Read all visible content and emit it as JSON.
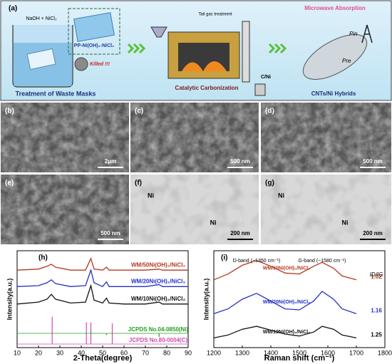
{
  "schematic": {
    "label": "(a)",
    "naoh": "NaOH + NiCl₂",
    "mask": "PP-Ni(OH)₂-NiCl₂",
    "killed": "Killed !!!",
    "treatment": "Treatment of Waste Masks",
    "tail_gas": "Tail gas treatment",
    "carbonization": "Catalytic Carbonization",
    "product": "C/Ni",
    "microwave": "Microwave Absorption",
    "hybrids": "CNTs/Ni Hybrids",
    "p_in": "Pin",
    "p_re": "Pre"
  },
  "micrographs": [
    {
      "label": "(b)",
      "scale_bar": "2μm",
      "tem": false
    },
    {
      "label": "(c)",
      "scale_bar": "500 nm",
      "tem": false
    },
    {
      "label": "(d)",
      "scale_bar": "500 nm",
      "tem": false
    },
    {
      "label": "(e)",
      "scale_bar": "500 nm",
      "tem": false
    },
    {
      "label": "(f)",
      "scale_bar": "200 nm",
      "tem": true,
      "markers": [
        "Ni",
        "Ni"
      ]
    },
    {
      "label": "(g)",
      "scale_bar": "200 nm",
      "tem": true,
      "markers": [
        "Ni",
        "Ni"
      ]
    }
  ],
  "chart_data": [
    {
      "type": "line",
      "label": "(h)",
      "x_label": "2-Theta(degree)",
      "y_label": "Intensity(a.u.)",
      "xlim": [
        10,
        90
      ],
      "xticks": [
        10,
        20,
        30,
        40,
        50,
        60,
        70,
        80,
        90
      ],
      "ylim": [
        0,
        100
      ],
      "x": [
        10,
        20,
        24,
        26,
        28,
        35,
        42,
        44.5,
        46,
        50,
        51.8,
        53,
        60,
        70,
        76.4,
        78,
        90
      ],
      "series": [
        {
          "name": "WM/50Ni(OH)₂/NiCl₂",
          "color": "#b5371f",
          "values": [
            80,
            81,
            84,
            86,
            83,
            80,
            80,
            92,
            81,
            80,
            83,
            80,
            80,
            80,
            81,
            80,
            80
          ]
        },
        {
          "name": "WM/20Ni(OH)₂/NiCl₂",
          "color": "#2230c8",
          "values": [
            63,
            64,
            67,
            70,
            66,
            63,
            64,
            80,
            67,
            63,
            68,
            63,
            63,
            63,
            65,
            63,
            63
          ]
        },
        {
          "name": "WM/10Ni(OH)₂/NiCl₂",
          "color": "#111111",
          "values": [
            45,
            47,
            50,
            55,
            50,
            46,
            47,
            64,
            49,
            46,
            51,
            46,
            45,
            45,
            47,
            45,
            45
          ]
        },
        {
          "name": "JCPDS No.80-0004(C)",
          "color": "#d04ab0",
          "kind": "stick",
          "x": [
            26.4,
            42.4,
            44.5,
            54.5
          ],
          "values": [
            32,
            26,
            26,
            25
          ]
        },
        {
          "name": "JCPDS No.04-0850(Ni)",
          "color": "#20a020",
          "kind": "stick",
          "x": [
            44.5,
            51.8,
            76.4
          ],
          "values": [
            17,
            13,
            11
          ]
        }
      ]
    },
    {
      "type": "line",
      "label": "(i)",
      "x_label": "Raman shift (cm⁻¹)",
      "y_label": "Intensity(a.u.)",
      "xlim": [
        1200,
        1800
      ],
      "xticks": [
        1200,
        1300,
        1400,
        1500,
        1600,
        1700,
        1800
      ],
      "ylim": [
        0,
        100
      ],
      "x": [
        1200,
        1250,
        1300,
        1350,
        1400,
        1450,
        1500,
        1550,
        1580,
        1620,
        1650,
        1700
      ],
      "annotations": [
        "D-band (~1350 cm⁻¹)",
        "G-band (~1580 cm⁻¹)"
      ],
      "ratio_header": "ID/IG",
      "series": [
        {
          "name": "WM/50Ni(OH)₂/NiCl₂",
          "color": "#b5371f",
          "values": [
            70,
            76,
            85,
            90,
            84,
            77,
            76,
            84,
            88,
            82,
            74,
            70
          ],
          "ratio": 1.02
        },
        {
          "name": "WM/20Ni(OH)₂/NiCl₂",
          "color": "#2230c8",
          "values": [
            35,
            40,
            50,
            56,
            48,
            40,
            39,
            48,
            58,
            50,
            40,
            35
          ],
          "ratio": 1.16
        },
        {
          "name": "WM/10Ni(OH)₂/NiCl₂",
          "color": "#111111",
          "values": [
            10,
            13,
            19,
            22,
            18,
            14,
            12,
            16,
            22,
            19,
            13,
            10
          ],
          "ratio": 1.25
        }
      ]
    }
  ]
}
